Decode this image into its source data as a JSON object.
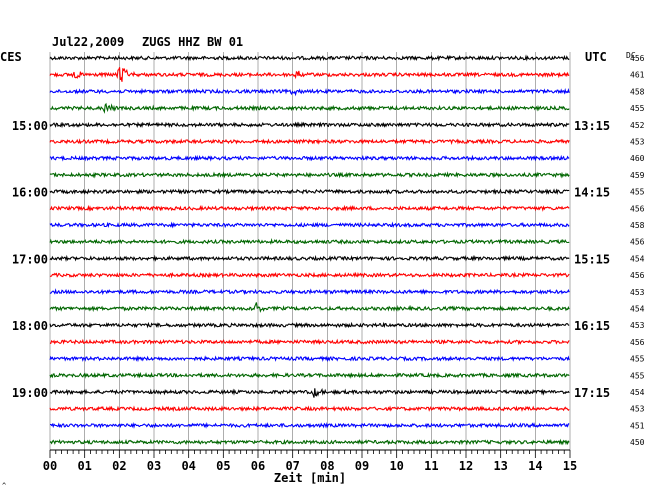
{
  "header": {
    "date": "Jul22,2009",
    "station": "ZUGS HHZ BW 01",
    "left_zone": "CES",
    "right_zone": "UTC",
    "dc_label": "DC"
  },
  "chart_data": {
    "type": "line",
    "title": "Jul22,2009   ZUGS HHZ BW 01",
    "xlabel": "Zeit [min]",
    "x_ticks": [
      "00",
      "01",
      "02",
      "03",
      "04",
      "05",
      "06",
      "07",
      "08",
      "09",
      "10",
      "11",
      "12",
      "13",
      "14",
      "15"
    ],
    "xlim": [
      0,
      15
    ],
    "left_time_labels": [
      {
        "row": 4,
        "text": "15:00"
      },
      {
        "row": 8,
        "text": "16:00"
      },
      {
        "row": 12,
        "text": "17:00"
      },
      {
        "row": 16,
        "text": "18:00"
      },
      {
        "row": 20,
        "text": "19:00"
      }
    ],
    "right_time_labels": [
      {
        "row": 4,
        "text": "13:15"
      },
      {
        "row": 8,
        "text": "14:15"
      },
      {
        "row": 12,
        "text": "15:15"
      },
      {
        "row": 16,
        "text": "16:15"
      },
      {
        "row": 20,
        "text": "17:15"
      }
    ],
    "dc_values": [
      "456",
      "461",
      "458",
      "455",
      "452",
      "453",
      "460",
      "459",
      "455",
      "456",
      "458",
      "456",
      "454",
      "456",
      "453",
      "454",
      "453",
      "456",
      "455",
      "455",
      "454",
      "453",
      "451",
      "450"
    ],
    "trace_colors": [
      "#000000",
      "#ff0000",
      "#0000ff",
      "#006600"
    ],
    "events": [
      {
        "row": 1,
        "minute": 2.0,
        "amplitude": 14
      },
      {
        "row": 1,
        "minute": 0.7,
        "amplitude": 5
      },
      {
        "row": 1,
        "minute": 7.1,
        "amplitude": 5
      },
      {
        "row": 3,
        "minute": 1.6,
        "amplitude": 5
      },
      {
        "row": 2,
        "minute": 7.0,
        "amplitude": 4
      },
      {
        "row": 15,
        "minute": 5.9,
        "amplitude": 8
      },
      {
        "row": 20,
        "minute": 7.6,
        "amplitude": 7
      }
    ],
    "grid": true
  },
  "footnote": "^"
}
